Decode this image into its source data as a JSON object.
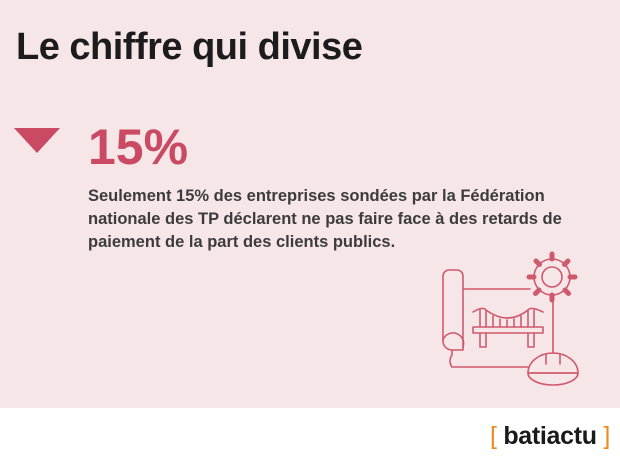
{
  "title": "Le chiffre qui divise",
  "indicator": {
    "direction": "down",
    "icon": "down-triangle-icon",
    "value": "15%"
  },
  "description": "Seulement 15% des entreprises sondées par la Fédération nationale des TP déclarent ne pas faire face à des retards de paiement de la part des clients publics.",
  "logo": {
    "open": "[",
    "text": "batiactu",
    "close": "]"
  },
  "colors": {
    "accent": "#c94a62",
    "background": "#f6e6e8",
    "logo_bracket": "#ee8a1d"
  }
}
